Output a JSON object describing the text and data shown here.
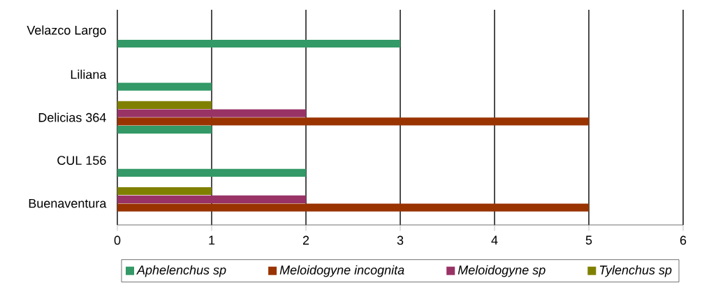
{
  "chart_data": {
    "type": "bar",
    "orientation": "horizontal",
    "categories": [
      "Velazco Largo",
      "Liliana",
      "Delicias 364",
      "CUL 156",
      "Buenaventura"
    ],
    "series": [
      {
        "name": "Aphelenchus sp",
        "color": "#339966",
        "values": [
          3,
          1,
          1,
          2,
          null
        ]
      },
      {
        "name": "Meloidogyne incognita",
        "color": "#993300",
        "values": [
          0,
          0,
          5,
          0,
          5
        ]
      },
      {
        "name": "Meloidogyne sp",
        "color": "#993366",
        "values": [
          0,
          0,
          2,
          0,
          2
        ]
      },
      {
        "name": "Tylenchus sp",
        "color": "#808000",
        "values": [
          0,
          0,
          1,
          0,
          1
        ]
      }
    ],
    "xlim": [
      0,
      6
    ],
    "xticks": [
      0,
      1,
      2,
      3,
      4,
      5,
      6
    ],
    "grid": "x",
    "legend": "bottom"
  }
}
